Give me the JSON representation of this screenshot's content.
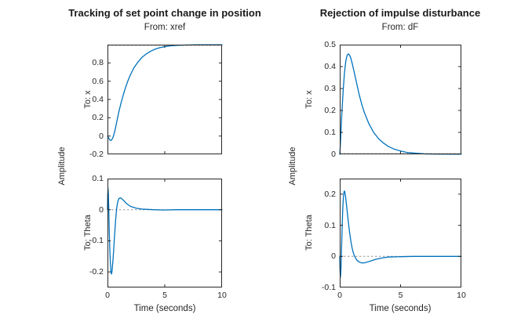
{
  "figure": {
    "background": "#ffffff",
    "text_color": "#262626",
    "curve_color": "#0072BD",
    "axis_color": "#262626",
    "ref_dark": "#595959",
    "ref_gray": "#999999"
  },
  "columns": [
    {
      "title": "Tracking of set point change in position",
      "subtitle": "From: xref",
      "xlabel": "Time (seconds)",
      "ylabel": "Amplitude"
    },
    {
      "title": "Rejection of impulse disturbance",
      "subtitle": "From: dF",
      "xlabel": "Time (seconds)",
      "ylabel": "Amplitude"
    }
  ],
  "chart_data": [
    {
      "id": "tl",
      "type": "line",
      "title": "Tracking of set point change in position",
      "row_label": "To: x",
      "xlim": [
        0,
        10
      ],
      "ylim": [
        -0.2,
        1.0
      ],
      "grid": false,
      "yticks": [
        {
          "v": -0.2,
          "l": "-0.2"
        },
        {
          "v": 0,
          "l": "0"
        },
        {
          "v": 0.2,
          "l": "0.2"
        },
        {
          "v": 0.4,
          "l": "0.4"
        },
        {
          "v": 0.6,
          "l": "0.6"
        },
        {
          "v": 0.8,
          "l": "0.8"
        },
        {
          "v": 1.0,
          "l": ""
        }
      ],
      "xticks": [
        {
          "v": 0,
          "l": ""
        },
        {
          "v": 5,
          "l": ""
        },
        {
          "v": 10,
          "l": ""
        }
      ],
      "refline": {
        "y": 1.0,
        "shade": "dark"
      },
      "points": [
        [
          0,
          0
        ],
        [
          0.1,
          -0.02
        ],
        [
          0.2,
          -0.042
        ],
        [
          0.3,
          -0.05
        ],
        [
          0.4,
          -0.035
        ],
        [
          0.5,
          -0.008
        ],
        [
          0.6,
          0.035
        ],
        [
          0.7,
          0.09
        ],
        [
          0.8,
          0.15
        ],
        [
          0.9,
          0.21
        ],
        [
          1.0,
          0.27
        ],
        [
          1.2,
          0.37
        ],
        [
          1.4,
          0.46
        ],
        [
          1.6,
          0.54
        ],
        [
          1.8,
          0.61
        ],
        [
          2.0,
          0.67
        ],
        [
          2.3,
          0.745
        ],
        [
          2.6,
          0.8
        ],
        [
          3.0,
          0.86
        ],
        [
          3.4,
          0.9
        ],
        [
          3.8,
          0.93
        ],
        [
          4.2,
          0.953
        ],
        [
          4.6,
          0.968
        ],
        [
          5.0,
          0.978
        ],
        [
          5.5,
          0.987
        ],
        [
          6.0,
          0.992
        ],
        [
          7.0,
          0.997
        ],
        [
          8.0,
          0.999
        ],
        [
          9.0,
          0.999
        ],
        [
          10,
          0.999
        ]
      ]
    },
    {
      "id": "tr",
      "type": "line",
      "title": "Rejection of impulse disturbance",
      "row_label": "To: x",
      "xlim": [
        0,
        10
      ],
      "ylim": [
        0,
        0.5
      ],
      "grid": false,
      "yticks": [
        {
          "v": 0,
          "l": "0"
        },
        {
          "v": 0.1,
          "l": "0.1"
        },
        {
          "v": 0.2,
          "l": "0.2"
        },
        {
          "v": 0.3,
          "l": "0.3"
        },
        {
          "v": 0.4,
          "l": "0.4"
        },
        {
          "v": 0.5,
          "l": "0.5"
        }
      ],
      "xticks": [
        {
          "v": 0,
          "l": ""
        },
        {
          "v": 5,
          "l": ""
        },
        {
          "v": 10,
          "l": ""
        }
      ],
      "refline": {
        "y": 0,
        "shade": "dark"
      },
      "points": [
        [
          0,
          0
        ],
        [
          0.05,
          0.04
        ],
        [
          0.1,
          0.1
        ],
        [
          0.15,
          0.16
        ],
        [
          0.2,
          0.215
        ],
        [
          0.3,
          0.305
        ],
        [
          0.4,
          0.378
        ],
        [
          0.5,
          0.425
        ],
        [
          0.6,
          0.45
        ],
        [
          0.7,
          0.458
        ],
        [
          0.8,
          0.453
        ],
        [
          0.9,
          0.44
        ],
        [
          1.0,
          0.42
        ],
        [
          1.2,
          0.372
        ],
        [
          1.4,
          0.322
        ],
        [
          1.6,
          0.272
        ],
        [
          1.8,
          0.23
        ],
        [
          2.0,
          0.194
        ],
        [
          2.4,
          0.139
        ],
        [
          2.8,
          0.099
        ],
        [
          3.2,
          0.071
        ],
        [
          3.6,
          0.051
        ],
        [
          4.0,
          0.036
        ],
        [
          4.5,
          0.023
        ],
        [
          5.0,
          0.015
        ],
        [
          5.5,
          0.009
        ],
        [
          6.0,
          0.006
        ],
        [
          7.0,
          0.002
        ],
        [
          8.0,
          0.001
        ],
        [
          10,
          0.0005
        ]
      ]
    },
    {
      "id": "bl",
      "type": "line",
      "title": "Tracking of set point change in position",
      "row_label": "To: Theta",
      "xlim": [
        0,
        10
      ],
      "ylim": [
        -0.25,
        0.1
      ],
      "grid": false,
      "yticks": [
        {
          "v": 0.1,
          "l": "0.1"
        },
        {
          "v": 0,
          "l": "0"
        },
        {
          "v": -0.1,
          "l": "-0.1"
        },
        {
          "v": -0.2,
          "l": "-0.2"
        }
      ],
      "xticks": [
        {
          "v": 0,
          "l": "0"
        },
        {
          "v": 5,
          "l": "5"
        },
        {
          "v": 10,
          "l": "10"
        }
      ],
      "refline": {
        "y": 0,
        "shade": "gray"
      },
      "points": [
        [
          0,
          0
        ],
        [
          0.02,
          0.05
        ],
        [
          0.05,
          0.068
        ],
        [
          0.08,
          0.05
        ],
        [
          0.12,
          -0.01
        ],
        [
          0.16,
          -0.075
        ],
        [
          0.2,
          -0.125
        ],
        [
          0.25,
          -0.17
        ],
        [
          0.3,
          -0.198
        ],
        [
          0.35,
          -0.207
        ],
        [
          0.4,
          -0.197
        ],
        [
          0.5,
          -0.152
        ],
        [
          0.6,
          -0.093
        ],
        [
          0.7,
          -0.038
        ],
        [
          0.8,
          0.004
        ],
        [
          0.9,
          0.027
        ],
        [
          1.0,
          0.036
        ],
        [
          1.1,
          0.038
        ],
        [
          1.2,
          0.037
        ],
        [
          1.4,
          0.03
        ],
        [
          1.6,
          0.022
        ],
        [
          1.8,
          0.016
        ],
        [
          2.0,
          0.011
        ],
        [
          2.5,
          0.005
        ],
        [
          3.0,
          0.002
        ],
        [
          3.5,
          0.001
        ],
        [
          4.0,
          0
        ],
        [
          5.0,
          -0.001
        ],
        [
          6.0,
          0
        ],
        [
          10,
          0
        ]
      ]
    },
    {
      "id": "br",
      "type": "line",
      "title": "Rejection of impulse disturbance",
      "row_label": "To: Theta",
      "xlim": [
        0,
        10
      ],
      "ylim": [
        -0.1,
        0.25
      ],
      "grid": false,
      "yticks": [
        {
          "v": -0.1,
          "l": "-0.1"
        },
        {
          "v": 0,
          "l": "0"
        },
        {
          "v": 0.1,
          "l": "0.1"
        },
        {
          "v": 0.2,
          "l": "0.2"
        }
      ],
      "xticks": [
        {
          "v": 0,
          "l": "0"
        },
        {
          "v": 5,
          "l": "5"
        },
        {
          "v": 10,
          "l": "10"
        }
      ],
      "refline": {
        "y": 0,
        "shade": "gray"
      },
      "points": [
        [
          0,
          0
        ],
        [
          0.02,
          -0.04
        ],
        [
          0.05,
          -0.068
        ],
        [
          0.08,
          -0.058
        ],
        [
          0.12,
          -0.02
        ],
        [
          0.16,
          0.04
        ],
        [
          0.2,
          0.1
        ],
        [
          0.25,
          0.155
        ],
        [
          0.3,
          0.19
        ],
        [
          0.35,
          0.208
        ],
        [
          0.4,
          0.21
        ],
        [
          0.45,
          0.2
        ],
        [
          0.5,
          0.185
        ],
        [
          0.6,
          0.149
        ],
        [
          0.7,
          0.113
        ],
        [
          0.8,
          0.08
        ],
        [
          0.9,
          0.052
        ],
        [
          1.0,
          0.03
        ],
        [
          1.1,
          0.014
        ],
        [
          1.2,
          0.002
        ],
        [
          1.4,
          -0.012
        ],
        [
          1.6,
          -0.018
        ],
        [
          1.8,
          -0.021
        ],
        [
          2.0,
          -0.021
        ],
        [
          2.3,
          -0.018
        ],
        [
          2.6,
          -0.014
        ],
        [
          3.0,
          -0.009
        ],
        [
          3.5,
          -0.005
        ],
        [
          4.0,
          -0.002
        ],
        [
          5.0,
          -0.001
        ],
        [
          6.0,
          0
        ],
        [
          10,
          0
        ]
      ]
    }
  ]
}
